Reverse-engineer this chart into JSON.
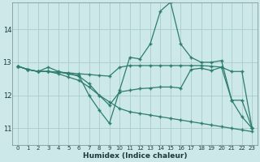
{
  "background_color": "#cce8e8",
  "grid_color": "#aacccc",
  "line_color": "#2d7d6e",
  "xlabel": "Humidex (Indice chaleur)",
  "xlim": [
    -0.5,
    23.5
  ],
  "ylim": [
    10.5,
    14.8
  ],
  "yticks": [
    11,
    12,
    13,
    14
  ],
  "xticks": [
    0,
    1,
    2,
    3,
    4,
    5,
    6,
    7,
    8,
    9,
    10,
    11,
    12,
    13,
    14,
    15,
    16,
    17,
    18,
    19,
    20,
    21,
    22,
    23
  ],
  "lines": [
    {
      "x": [
        0,
        1,
        2,
        3,
        4,
        5,
        6,
        7,
        8,
        9,
        10,
        11,
        12,
        13,
        14,
        15,
        16,
        17,
        18,
        19,
        20,
        21,
        22,
        23
      ],
      "y": [
        12.88,
        12.78,
        12.72,
        12.85,
        12.72,
        12.65,
        12.6,
        12.0,
        11.55,
        11.15,
        12.15,
        13.15,
        13.1,
        13.55,
        14.55,
        14.82,
        13.55,
        13.15,
        13.0,
        13.0,
        13.05,
        11.85,
        11.35,
        11.0
      ]
    },
    {
      "x": [
        0,
        1,
        2,
        3,
        4,
        5,
        6,
        7,
        8,
        9,
        10,
        11,
        12,
        13,
        14,
        15,
        16,
        17,
        18,
        19,
        20,
        21,
        22,
        23
      ],
      "y": [
        12.88,
        12.78,
        12.72,
        12.72,
        12.7,
        12.68,
        12.65,
        12.63,
        12.6,
        12.58,
        12.85,
        12.9,
        12.9,
        12.9,
        12.9,
        12.9,
        12.9,
        12.9,
        12.9,
        12.88,
        12.85,
        12.72,
        12.72,
        11.0
      ]
    },
    {
      "x": [
        0,
        1,
        2,
        3,
        4,
        5,
        6,
        7,
        8,
        9,
        10,
        11,
        12,
        13,
        14,
        15,
        16,
        17,
        18,
        19,
        20,
        21,
        22,
        23
      ],
      "y": [
        12.88,
        12.78,
        12.72,
        12.72,
        12.7,
        12.65,
        12.58,
        12.35,
        12.0,
        11.7,
        12.1,
        12.15,
        12.2,
        12.22,
        12.25,
        12.25,
        12.22,
        12.78,
        12.82,
        12.75,
        12.85,
        11.85,
        11.85,
        11.0
      ]
    },
    {
      "x": [
        0,
        1,
        2,
        3,
        4,
        5,
        6,
        7,
        8,
        9,
        10,
        11,
        12,
        13,
        14,
        15,
        16,
        17,
        18,
        19,
        20,
        21,
        22,
        23
      ],
      "y": [
        12.88,
        12.78,
        12.72,
        12.72,
        12.65,
        12.55,
        12.45,
        12.25,
        12.0,
        11.8,
        11.6,
        11.5,
        11.45,
        11.4,
        11.35,
        11.3,
        11.25,
        11.2,
        11.15,
        11.1,
        11.05,
        11.0,
        10.95,
        10.9
      ]
    }
  ]
}
